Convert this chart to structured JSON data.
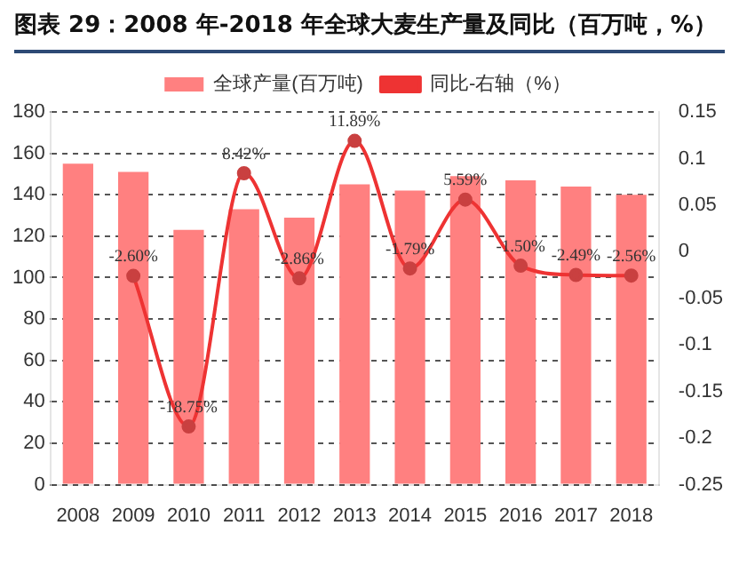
{
  "chart_data": {
    "type": "bar",
    "title": "图表 29：2008 年-2018 年全球大麦生产量及同比（百万吨，%）",
    "categories": [
      "2008",
      "2009",
      "2010",
      "2011",
      "2012",
      "2013",
      "2014",
      "2015",
      "2016",
      "2017",
      "2018"
    ],
    "series": [
      {
        "name": "全球产量(百万吨)",
        "color": "#ff8080",
        "values": [
          155,
          151,
          123,
          133,
          129,
          145,
          142,
          149,
          147,
          144,
          140
        ]
      },
      {
        "name": "同比-右轴（%）",
        "type": "line",
        "axis": "y2",
        "color": "#ee3333",
        "marker": "circle",
        "values": [
          null,
          -0.026,
          -0.1875,
          0.0842,
          -0.0286,
          0.1189,
          -0.0179,
          0.0559,
          -0.015,
          -0.0249,
          -0.0256
        ],
        "value_labels": [
          null,
          "-2.60%",
          "-18.75%",
          "8.42%",
          "-2.86%",
          "11.89%",
          "-1.79%",
          "5.59%",
          "-1.50%",
          "-2.49%",
          "-2.56%"
        ]
      }
    ],
    "ylim": [
      0,
      180
    ],
    "yticks": [
      0,
      20,
      40,
      60,
      80,
      100,
      120,
      140,
      160,
      180
    ],
    "y2lim": [
      -0.25,
      0.15
    ],
    "y2ticks": [
      -0.25,
      -0.2,
      -0.15,
      -0.1,
      -0.05,
      0,
      0.05,
      0.1,
      0.15
    ],
    "grid": "y",
    "legend": "top"
  }
}
